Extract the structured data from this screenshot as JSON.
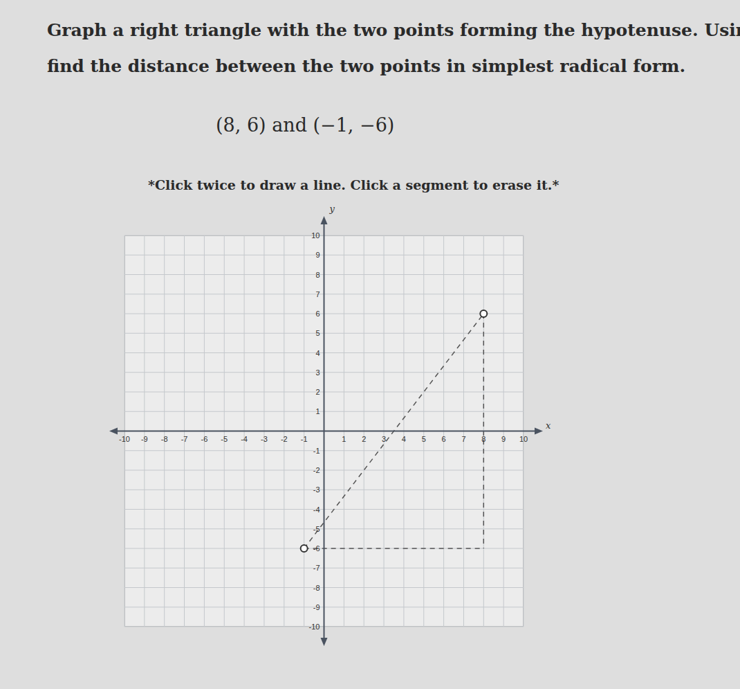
{
  "question": {
    "lines": [
      "Graph a right triangle with the two points forming the hypotenuse. Using the",
      "find the distance between the two points in simplest radical form."
    ],
    "points": "(8, 6) and (−1, −6)",
    "instruction": "*Click twice to draw a line. Click a segment to erase it.*"
  },
  "chart_data": {
    "type": "line",
    "x_label": "x",
    "y_label": "y",
    "xlim": [
      -10,
      10
    ],
    "ylim": [
      -10,
      10
    ],
    "xticks": [
      -10,
      -9,
      -8,
      -7,
      -6,
      -5,
      -4,
      -3,
      -2,
      -1,
      1,
      2,
      3,
      4,
      5,
      6,
      7,
      8,
      9,
      10
    ],
    "yticks": [
      -10,
      -9,
      -8,
      -7,
      -6,
      -5,
      -4,
      -3,
      -2,
      -1,
      1,
      2,
      3,
      4,
      5,
      6,
      7,
      8,
      9,
      10
    ],
    "grid": true,
    "series": [
      {
        "type": "line",
        "x": [
          -1,
          8
        ],
        "values": [
          -6,
          6
        ],
        "line_style": "dashed",
        "color": "#555555"
      },
      {
        "type": "line",
        "x": [
          8,
          8
        ],
        "values": [
          6,
          -6
        ],
        "line_style": "dashed",
        "color": "#555555"
      },
      {
        "type": "line",
        "x": [
          -1,
          8
        ],
        "values": [
          -6,
          -6
        ],
        "line_style": "dashed",
        "color": "#555555"
      },
      {
        "type": "scatter",
        "x": [
          8,
          -1
        ],
        "values": [
          6,
          -6
        ],
        "marker": "open_circle",
        "color": "#333333"
      }
    ]
  }
}
